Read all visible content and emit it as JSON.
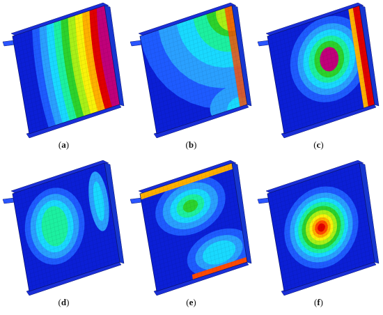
{
  "figure": {
    "panels": [
      {
        "id": "a",
        "label_open": "(",
        "label_letter": "a",
        "label_close": ")",
        "mode": "bands"
      },
      {
        "id": "b",
        "label_open": "(",
        "label_letter": "b",
        "label_close": ")",
        "mode": "corner"
      },
      {
        "id": "c",
        "label_open": "(",
        "label_letter": "c",
        "label_close": ")",
        "mode": "single-right"
      },
      {
        "id": "d",
        "label_open": "(",
        "label_letter": "d",
        "label_close": ")",
        "mode": "double-weak"
      },
      {
        "id": "e",
        "label_open": "(",
        "label_letter": "e",
        "label_close": ")",
        "mode": "double-top"
      },
      {
        "id": "f",
        "label_open": "(",
        "label_letter": "f",
        "label_close": ")",
        "mode": "center"
      }
    ],
    "palette": [
      "#0b1fd6",
      "#1e5bff",
      "#2aa0ff",
      "#19d9ff",
      "#1cf0a0",
      "#2cd22c",
      "#a8f018",
      "#f7f20a",
      "#ffb000",
      "#ff4a00",
      "#e00000",
      "#c0007a"
    ]
  }
}
